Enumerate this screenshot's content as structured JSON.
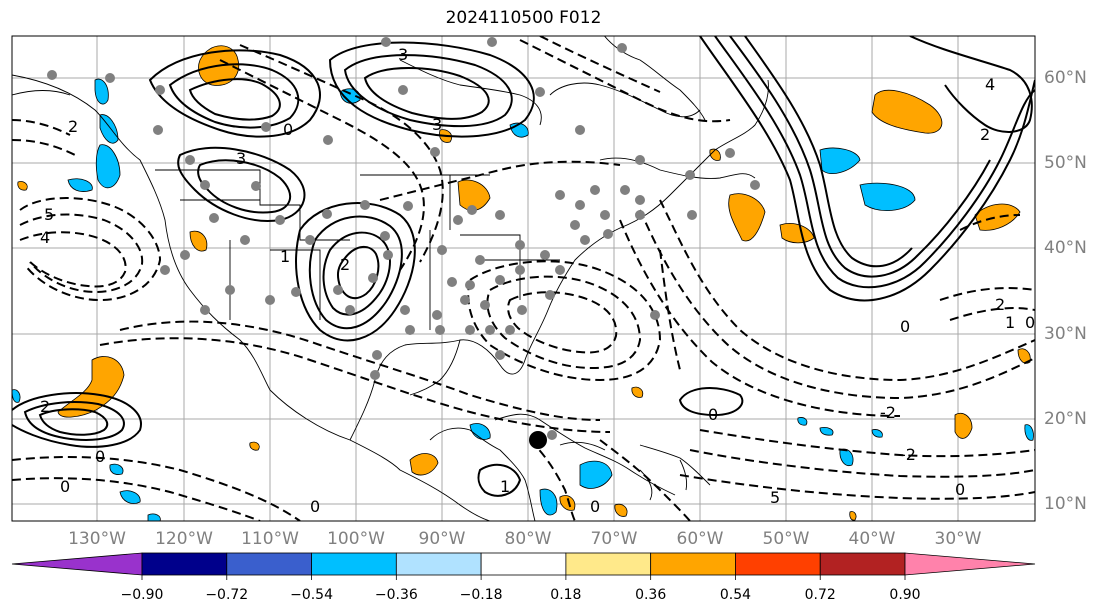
{
  "title": "2024110500 F012",
  "lat_labels": [
    "60°N",
    "50°N",
    "40°N",
    "30°N",
    "20°N",
    "10°N"
  ],
  "lon_labels": [
    "130°W",
    "120°W",
    "110°W",
    "100°W",
    "90°W",
    "80°W",
    "70°W",
    "60°W",
    "50°W",
    "40°W",
    "30°W"
  ],
  "contour_labels": [
    "5",
    "4",
    "3",
    "3",
    "3",
    "2",
    "1",
    "0",
    "0",
    "0",
    "1",
    "2",
    "2",
    "0",
    "0",
    "0",
    "4",
    "2",
    "2",
    "1",
    "0",
    "-2",
    "-2",
    "0",
    "5",
    "0"
  ],
  "colorbar": {
    "ticks": [
      "−0.90",
      "−0.72",
      "−0.54",
      "−0.36",
      "−0.18",
      "0.18",
      "0.36",
      "0.54",
      "0.72",
      "0.90"
    ],
    "colors": [
      "#9932cc",
      "#00008b",
      "#3a5fcd",
      "#00bfff",
      "#b0e2ff",
      "#ffffff",
      "#ffe98a",
      "#ffa500",
      "#ff4000",
      "#b22222",
      "#ff82ab"
    ]
  },
  "colors": {
    "positive_fill": "#ffa500",
    "negative_fill": "#00bfff",
    "station": "#808080",
    "contour": "#000000",
    "grid": "#a0a0a0"
  }
}
